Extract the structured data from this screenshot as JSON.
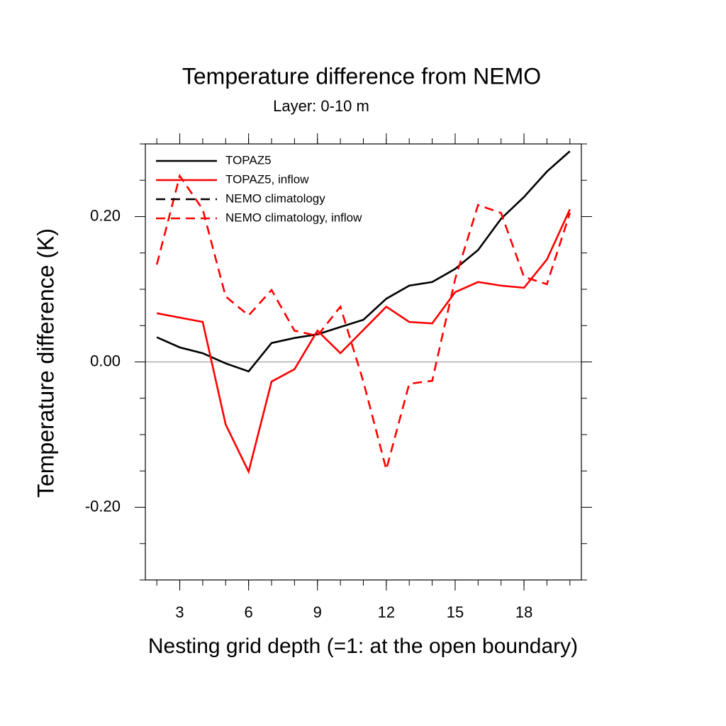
{
  "chart_data": {
    "type": "line",
    "title": "Temperature difference from NEMO",
    "subtitle": "Layer: 0-10 m",
    "x_label": "Nesting grid depth (=1: at the open boundary)",
    "y_label": "Temperature difference (K)",
    "x": [
      2,
      3,
      4,
      5,
      6,
      7,
      8,
      9,
      10,
      11,
      12,
      13,
      14,
      15,
      16,
      17,
      18,
      19,
      20
    ],
    "series": [
      {
        "name": "TOPAZ5",
        "color": "#000000",
        "dash": false,
        "values": [
          0.034,
          0.02,
          0.012,
          -0.002,
          -0.013,
          0.026,
          0.033,
          0.038,
          0.048,
          0.058,
          0.087,
          0.105,
          0.11,
          0.128,
          0.154,
          0.197,
          0.227,
          0.262,
          0.29
        ]
      },
      {
        "name": "TOPAZ5, inflow",
        "color": "#ff0000",
        "dash": false,
        "values": [
          0.067,
          0.061,
          0.055,
          -0.086,
          -0.151,
          -0.027,
          -0.01,
          0.043,
          0.012,
          0.044,
          0.076,
          0.055,
          0.053,
          0.096,
          0.11,
          0.105,
          0.102,
          0.141,
          0.21
        ]
      },
      {
        "name": "NEMO climatology",
        "color": "#000000",
        "dash": true,
        "values": [
          null,
          null,
          null,
          null,
          null,
          null,
          null,
          null,
          null,
          null,
          null,
          null,
          null,
          null,
          null,
          null,
          null,
          null,
          null
        ]
      },
      {
        "name": "NEMO climatology, inflow",
        "color": "#ff0000",
        "dash": true,
        "values": [
          0.134,
          0.256,
          0.21,
          0.09,
          0.064,
          0.099,
          0.043,
          0.036,
          0.076,
          -0.027,
          -0.148,
          -0.03,
          -0.026,
          0.114,
          0.216,
          0.205,
          0.117,
          0.107,
          0.205
        ]
      }
    ],
    "xlim": [
      1.5,
      20.5
    ],
    "ylim": [
      -0.3,
      0.3
    ],
    "xticks": [
      3,
      6,
      9,
      12,
      15,
      18
    ],
    "yticks": [
      {
        "value": -0.2,
        "label": "-0.20"
      },
      {
        "value": 0,
        "label": "0.00"
      },
      {
        "value": 0.2,
        "label": "0.20"
      }
    ],
    "xminorticks": [
      2,
      3,
      4,
      5,
      6,
      7,
      8,
      9,
      10,
      11,
      12,
      13,
      14,
      15,
      16,
      17,
      18,
      19,
      20
    ],
    "yminorticks": [
      -0.3,
      -0.25,
      -0.2,
      -0.15,
      -0.1,
      -0.05,
      0,
      0.05,
      0.1,
      0.15,
      0.2,
      0.25,
      0.3
    ],
    "zero_line": 0,
    "legend": "top-left"
  }
}
